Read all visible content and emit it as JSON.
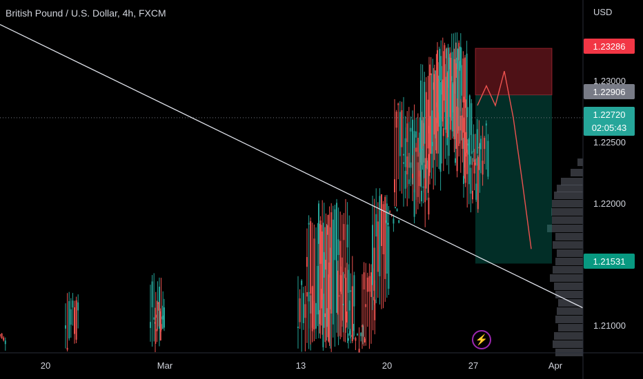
{
  "header": {
    "title": "British Pound / U.S. Dollar, 4h, FXCM"
  },
  "price_axis": {
    "currency": "USD",
    "ticks": [
      "1.23000",
      "1.22500",
      "1.22000",
      "1.21000"
    ],
    "labels": {
      "stop": "1.23286",
      "entry": "1.22906",
      "current": "1.22720",
      "countdown": "02:05:43",
      "target": "1.21531"
    }
  },
  "time_axis": {
    "ticks": [
      "20",
      "Mar",
      "13",
      "20",
      "27",
      "Apr"
    ]
  },
  "colors": {
    "up": "#26a69a",
    "down": "#ef5350",
    "stop_zone": "#f23645",
    "target_zone": "#089981",
    "entry_label": "#787b86",
    "current_label": "#26a69a",
    "target_label": "#089981",
    "stop_label": "#f23645"
  },
  "icons": {
    "replay": "lightning-bolt-icon"
  },
  "chart_data": {
    "type": "candlestick",
    "symbol": "GBPUSD",
    "timeframe": "4h",
    "y_range": [
      1.2075,
      1.2375
    ],
    "key_levels": {
      "stop_loss": 1.23286,
      "entry": 1.22906,
      "last": 1.2272,
      "take_profit": 1.21531
    },
    "trendline": {
      "from_price": 1.2348,
      "to_price": 1.2117,
      "direction": "descending"
    },
    "projection_path": [
      1.2282,
      1.2298,
      1.2282,
      1.231,
      1.2272,
      1.222,
      1.2165
    ]
  }
}
